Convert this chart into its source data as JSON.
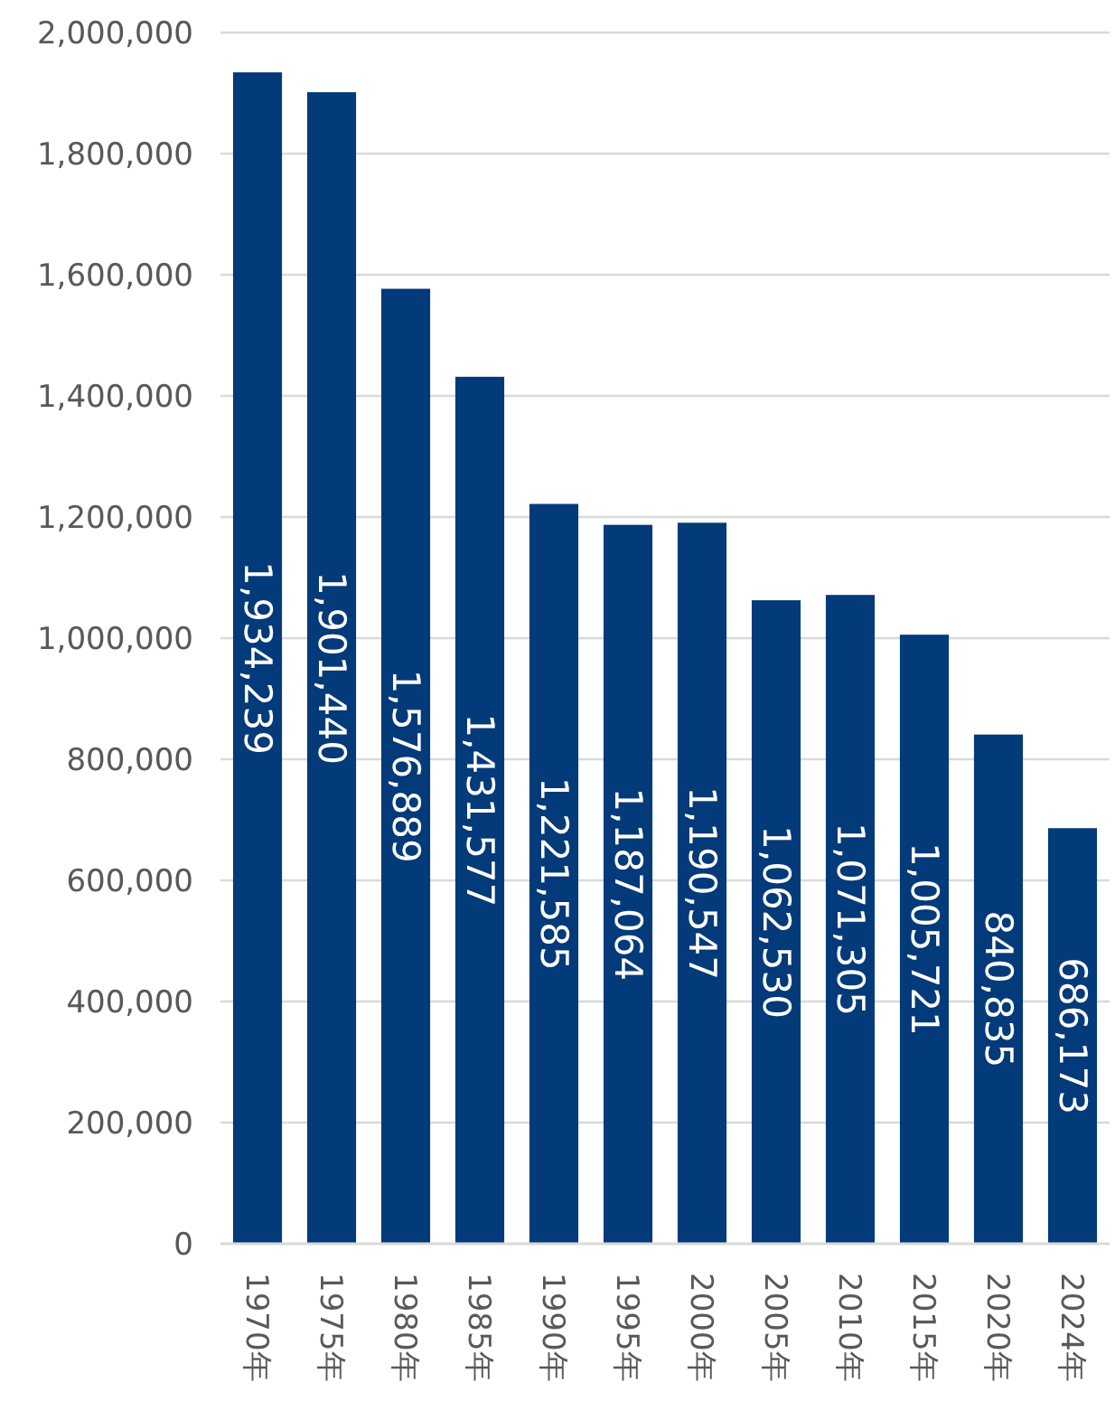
{
  "chart_data": {
    "type": "bar",
    "categories": [
      "1970年",
      "1975年",
      "1980年",
      "1985年",
      "1990年",
      "1995年",
      "2000年",
      "2005年",
      "2010年",
      "2015年",
      "2020年",
      "2024年"
    ],
    "values": [
      1934239,
      1901440,
      1576889,
      1431577,
      1221585,
      1187064,
      1190547,
      1062530,
      1071305,
      1005721,
      840835,
      686173
    ],
    "value_labels": [
      "1,934,239",
      "1,901,440",
      "1,576,889",
      "1,431,577",
      "1,221,585",
      "1,187,064",
      "1,190,547",
      "1,062,530",
      "1,071,305",
      "1,005,721",
      "840,835",
      "686,173"
    ],
    "color": "#033a79",
    "ylim": [
      0,
      2000000
    ],
    "yticks": [
      {
        "value": 0,
        "label": "0"
      },
      {
        "value": 200000,
        "label": "200,000"
      },
      {
        "value": 400000,
        "label": "400,000"
      },
      {
        "value": 600000,
        "label": "600,000"
      },
      {
        "value": 800000,
        "label": "800,000"
      },
      {
        "value": 1000000,
        "label": "1,000,000"
      },
      {
        "value": 1200000,
        "label": "1,200,000"
      },
      {
        "value": 1400000,
        "label": "1,400,000"
      },
      {
        "value": 1600000,
        "label": "1,600,000"
      },
      {
        "value": 1800000,
        "label": "1,800,000"
      },
      {
        "value": 2000000,
        "label": "2,000,000"
      }
    ],
    "grid": "y"
  }
}
